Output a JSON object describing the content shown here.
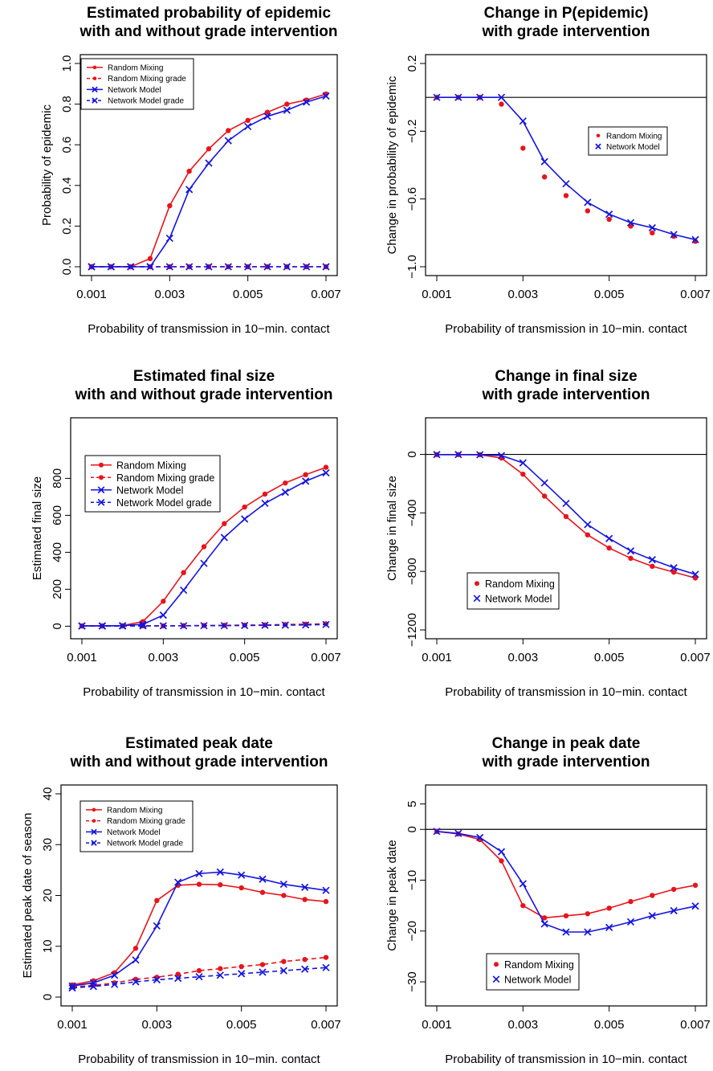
{
  "colors": {
    "random_mixing": "#e8141b",
    "network_model": "#1414e0",
    "axis": "#000000"
  },
  "chart_data": [
    {
      "type": "line",
      "title": [
        "Estimated probability of epidemic",
        "with and without grade intervention"
      ],
      "xlabel": "Probability of transmission in 10−min. contact",
      "ylabel": "Probability of epidemic",
      "xlim": [
        0.001,
        0.007
      ],
      "ylim": [
        0,
        1
      ],
      "xticks": [
        0.001,
        0.003,
        0.005,
        0.007
      ],
      "xtick_labels": [
        "0.001",
        "0.003",
        "0.005",
        "0.007"
      ],
      "yticks": [
        0,
        0.2,
        0.4,
        0.6,
        0.8,
        1.0
      ],
      "ytick_labels": [
        "0.0",
        "0.2",
        "0.4",
        "0.6",
        "0.8",
        "1.0"
      ],
      "legend_position": "top-left",
      "x": [
        0.001,
        0.0015,
        0.002,
        0.0025,
        0.003,
        0.0035,
        0.004,
        0.0045,
        0.005,
        0.0055,
        0.006,
        0.0065,
        0.007
      ],
      "series": [
        {
          "name": "Random Mixing",
          "color": "#e8141b",
          "marker": "dot",
          "dash": "solid",
          "values": [
            0,
            0,
            0,
            0.04,
            0.3,
            0.47,
            0.58,
            0.67,
            0.72,
            0.76,
            0.8,
            0.82,
            0.85
          ]
        },
        {
          "name": "Random Mixing grade",
          "color": "#e8141b",
          "marker": "dot",
          "dash": "dashed",
          "values": [
            0,
            0,
            0,
            0,
            0,
            0,
            0,
            0,
            0,
            0,
            0,
            0,
            0
          ]
        },
        {
          "name": "Network Model",
          "color": "#1414e0",
          "marker": "x",
          "dash": "solid",
          "values": [
            0,
            0,
            0,
            0,
            0.14,
            0.38,
            0.51,
            0.62,
            0.69,
            0.74,
            0.77,
            0.81,
            0.84
          ]
        },
        {
          "name": "Network Model grade",
          "color": "#1414e0",
          "marker": "x",
          "dash": "dashed",
          "values": [
            0,
            0,
            0,
            0,
            0,
            0,
            0,
            0,
            0,
            0,
            0,
            0,
            0
          ]
        }
      ]
    },
    {
      "type": "line",
      "title": [
        "Change in P(epidemic)",
        "with grade intervention"
      ],
      "xlabel": "Probability of transmission in 10−min. contact",
      "ylabel": "Change in probability of epidemic",
      "xlim": [
        0.001,
        0.007
      ],
      "ylim": [
        -1.0,
        0.2
      ],
      "xticks": [
        0.001,
        0.003,
        0.005,
        0.007
      ],
      "xtick_labels": [
        "0.001",
        "0.003",
        "0.005",
        "0.007"
      ],
      "yticks": [
        -1.0,
        -0.6,
        -0.2,
        0.2
      ],
      "ytick_labels": [
        "−1.0",
        "−0.6",
        "−0.2",
        "0.2"
      ],
      "hline": 0,
      "legend_position": "top-right",
      "x": [
        0.001,
        0.0015,
        0.002,
        0.0025,
        0.003,
        0.0035,
        0.004,
        0.0045,
        0.005,
        0.0055,
        0.006,
        0.0065,
        0.007
      ],
      "series": [
        {
          "name": "Random Mixing",
          "color": "#e8141b",
          "marker": "dot",
          "dash": "none",
          "values": [
            0,
            0,
            0,
            -0.04,
            -0.3,
            -0.47,
            -0.58,
            -0.67,
            -0.72,
            -0.76,
            -0.8,
            -0.82,
            -0.85
          ]
        },
        {
          "name": "Network Model",
          "color": "#1414e0",
          "marker": "x",
          "dash": "solid",
          "values": [
            0,
            0,
            0,
            0,
            -0.14,
            -0.38,
            -0.51,
            -0.62,
            -0.69,
            -0.74,
            -0.77,
            -0.81,
            -0.84
          ]
        }
      ]
    },
    {
      "type": "line",
      "title": [
        "Estimated final size",
        "with and without grade intervention"
      ],
      "xlabel": "Probability of transmission in 10−min. contact",
      "ylabel": "Estimated final size",
      "xlim": [
        0.001,
        0.007
      ],
      "ylim": [
        -20,
        1080
      ],
      "xticks": [
        0.001,
        0.003,
        0.005,
        0.007
      ],
      "xtick_labels": [
        "0.001",
        "0.003",
        "0.005",
        "0.007"
      ],
      "yticks": [
        0,
        200,
        400,
        600,
        800
      ],
      "ytick_labels": [
        "0",
        "200",
        "400",
        "600",
        "800"
      ],
      "legend_position": "top-left",
      "x": [
        0.001,
        0.0015,
        0.002,
        0.0025,
        0.003,
        0.0035,
        0.004,
        0.0045,
        0.005,
        0.0055,
        0.006,
        0.0065,
        0.007
      ],
      "series": [
        {
          "name": "Random Mixing",
          "color": "#e8141b",
          "marker": "dot",
          "dash": "solid",
          "values": [
            2,
            2,
            3,
            25,
            135,
            290,
            430,
            555,
            645,
            715,
            775,
            820,
            860
          ]
        },
        {
          "name": "Random Mixing grade",
          "color": "#e8141b",
          "marker": "dot",
          "dash": "dashed",
          "values": [
            1,
            1,
            1,
            2,
            2,
            3,
            4,
            5,
            6,
            7,
            9,
            11,
            13
          ]
        },
        {
          "name": "Network Model",
          "color": "#1414e0",
          "marker": "x",
          "dash": "solid",
          "values": [
            2,
            2,
            3,
            10,
            60,
            195,
            340,
            480,
            580,
            665,
            725,
            785,
            830
          ]
        },
        {
          "name": "Network Model grade",
          "color": "#1414e0",
          "marker": "x",
          "dash": "dashed",
          "values": [
            1,
            1,
            1,
            2,
            2,
            2,
            3,
            3,
            4,
            5,
            6,
            7,
            9
          ]
        }
      ]
    },
    {
      "type": "line",
      "title": [
        "Change in final size",
        "with grade intervention"
      ],
      "xlabel": "Probability of transmission in 10−min. contact",
      "ylabel": "Change in final size",
      "xlim": [
        0.001,
        0.007
      ],
      "ylim": [
        -1200,
        190
      ],
      "xticks": [
        0.001,
        0.003,
        0.005,
        0.007
      ],
      "xtick_labels": [
        "0.001",
        "0.003",
        "0.005",
        "0.007"
      ],
      "yticks": [
        -1200,
        -800,
        -400,
        0
      ],
      "ytick_labels": [
        "−1200",
        "−800",
        "−400",
        "0"
      ],
      "hline": 0,
      "legend_position": "bottom-left",
      "x": [
        0.001,
        0.0015,
        0.002,
        0.0025,
        0.003,
        0.0035,
        0.004,
        0.0045,
        0.005,
        0.0055,
        0.006,
        0.0065,
        0.007
      ],
      "series": [
        {
          "name": "Random Mixing",
          "color": "#e8141b",
          "marker": "dot",
          "dash": "solid",
          "values": [
            -1,
            -1,
            -2,
            -25,
            -135,
            -285,
            -425,
            -550,
            -640,
            -710,
            -765,
            -805,
            -845
          ]
        },
        {
          "name": "Network Model",
          "color": "#1414e0",
          "marker": "x",
          "dash": "solid",
          "values": [
            -1,
            -1,
            -2,
            -8,
            -58,
            -195,
            -335,
            -480,
            -575,
            -660,
            -720,
            -775,
            -820
          ]
        }
      ]
    },
    {
      "type": "line",
      "title": [
        "Estimated peak date",
        "with and without grade intervention"
      ],
      "xlabel": "Probability of transmission in 10−min. contact",
      "ylabel": "Estimated peak date of season",
      "xlim": [
        0.001,
        0.007
      ],
      "ylim": [
        0,
        40
      ],
      "xticks": [
        0.001,
        0.003,
        0.005,
        0.007
      ],
      "xtick_labels": [
        "0.001",
        "0.003",
        "0.005",
        "0.007"
      ],
      "yticks": [
        0,
        10,
        20,
        30,
        40
      ],
      "ytick_labels": [
        "0",
        "10",
        "20",
        "30",
        "40"
      ],
      "legend_position": "top-left",
      "x": [
        0.001,
        0.0015,
        0.002,
        0.0025,
        0.003,
        0.0035,
        0.004,
        0.0045,
        0.005,
        0.0055,
        0.006,
        0.0065,
        0.007
      ],
      "series": [
        {
          "name": "Random Mixing",
          "color": "#e8141b",
          "marker": "dot",
          "dash": "solid",
          "values": [
            2.4,
            3.2,
            4.8,
            9.6,
            19.0,
            22.0,
            22.2,
            22.1,
            21.5,
            20.6,
            20.0,
            19.2,
            18.8
          ]
        },
        {
          "name": "Random Mixing grade",
          "color": "#e8141b",
          "marker": "dot",
          "dash": "dashed",
          "values": [
            2.0,
            2.3,
            2.8,
            3.5,
            3.9,
            4.5,
            5.2,
            5.6,
            6.0,
            6.4,
            7.0,
            7.4,
            7.8
          ]
        },
        {
          "name": "Network Model",
          "color": "#1414e0",
          "marker": "x",
          "dash": "solid",
          "values": [
            2.2,
            2.8,
            4.3,
            7.3,
            14.0,
            22.6,
            24.3,
            24.6,
            24.0,
            23.2,
            22.2,
            21.6,
            21.0
          ]
        },
        {
          "name": "Network Model grade",
          "color": "#1414e0",
          "marker": "x",
          "dash": "dashed",
          "values": [
            1.8,
            2.1,
            2.5,
            3.0,
            3.4,
            3.7,
            4.0,
            4.3,
            4.6,
            4.9,
            5.2,
            5.5,
            5.8
          ]
        }
      ]
    },
    {
      "type": "line",
      "title": [
        "Change in peak date",
        "with grade intervention"
      ],
      "xlabel": "Probability of transmission in 10−min. contact",
      "ylabel": "Change in peak date",
      "xlim": [
        0.001,
        0.007
      ],
      "ylim": [
        -33,
        7
      ],
      "xticks": [
        0.001,
        0.003,
        0.005,
        0.007
      ],
      "xtick_labels": [
        "0.001",
        "0.003",
        "0.005",
        "0.007"
      ],
      "yticks": [
        -30,
        -20,
        -10,
        0,
        5
      ],
      "ytick_labels": [
        "−30",
        "−20",
        "−10",
        "0",
        "5"
      ],
      "hline": 0,
      "legend_position": "bottom-left",
      "x": [
        0.001,
        0.0015,
        0.002,
        0.0025,
        0.003,
        0.0035,
        0.004,
        0.0045,
        0.005,
        0.0055,
        0.006,
        0.0065,
        0.007
      ],
      "series": [
        {
          "name": "Random Mixing",
          "color": "#e8141b",
          "marker": "dot",
          "dash": "solid",
          "values": [
            -0.4,
            -0.9,
            -2.0,
            -6.2,
            -15.0,
            -17.4,
            -17.0,
            -16.6,
            -15.5,
            -14.2,
            -13.0,
            -11.8,
            -11.0
          ]
        },
        {
          "name": "Network Model",
          "color": "#1414e0",
          "marker": "x",
          "dash": "solid",
          "values": [
            -0.4,
            -0.8,
            -1.6,
            -4.4,
            -10.7,
            -18.6,
            -20.2,
            -20.2,
            -19.3,
            -18.2,
            -17.0,
            -16.0,
            -15.1
          ]
        }
      ]
    }
  ]
}
